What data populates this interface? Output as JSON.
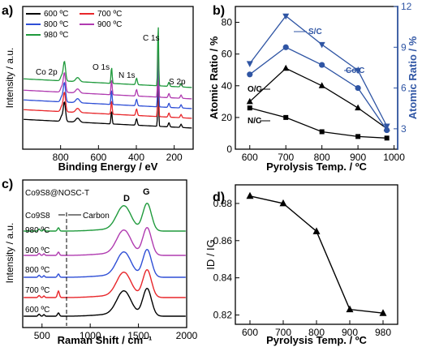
{
  "panels": {
    "a": {
      "tag": "a)",
      "xlabel": "Binding Energy / eV",
      "ylabel": "Intensity / a.u.",
      "xticks": [
        "800",
        "600",
        "400",
        "200"
      ],
      "legend": [
        {
          "label": "600 ºC",
          "color": "#000000"
        },
        {
          "label": "700 ºC",
          "color": "#e8262a"
        },
        {
          "label": "800 ºC",
          "color": "#2f4fd6"
        },
        {
          "label": "900 ºC",
          "color": "#b03bb0"
        },
        {
          "label": "980 ºC",
          "color": "#1f9a3c"
        }
      ],
      "peak_labels": [
        "Co 2p",
        "O 1s",
        "N 1s",
        "C 1s",
        "S 2p"
      ]
    },
    "b": {
      "tag": "b)",
      "xlabel": "Pyrolysis Temp. / ºC",
      "ylabel_left": "Atomic Ratio / %",
      "ylabel_right": "Atomic Ratio / %",
      "xticks": [
        "600",
        "700",
        "800",
        "900",
        "1000"
      ],
      "yticks_left": [
        "0",
        "20",
        "40",
        "60",
        "80"
      ],
      "yticks_right": [
        "3",
        "6",
        "9",
        "12"
      ],
      "left_color": "#000000",
      "right_color": "#2f55a4"
    },
    "c": {
      "tag": "c)",
      "xlabel": "Raman Shift / cm⁻¹",
      "ylabel": "Intensity / a.u.",
      "xticks": [
        "500",
        "1000",
        "1500",
        "2000"
      ],
      "header": "Co9S8@NOSC-T",
      "sample_label": "Co9S8",
      "carbon_label": "Carbon",
      "band_D": "D",
      "band_G": "G",
      "traces": [
        {
          "label": "980 ºC",
          "color": "#1f9a3c"
        },
        {
          "label": "900 ºC",
          "color": "#b03bb0"
        },
        {
          "label": "800 ºC",
          "color": "#2f4fd6"
        },
        {
          "label": "700 ºC",
          "color": "#e8262a"
        },
        {
          "label": "600 ºC",
          "color": "#000000"
        }
      ]
    },
    "d": {
      "tag": "d)",
      "xlabel": "Pyrolysis Temp. / ºC",
      "ylabel": "ID / IG",
      "xticks": [
        "600",
        "700",
        "800",
        "900",
        "980"
      ],
      "yticks": [
        "0.82",
        "0.84",
        "0.86",
        "0.88"
      ]
    }
  },
  "chart_data": [
    {
      "type": "line",
      "panel": "a",
      "title": "",
      "xlabel": "Binding Energy / eV",
      "ylabel": "Intensity / a.u.",
      "xlim": [
        1000,
        100
      ],
      "x_reversed": true,
      "series": [
        {
          "name": "600 ºC",
          "peaks": [
            780,
            531,
            399,
            285,
            164
          ]
        },
        {
          "name": "700 ºC",
          "peaks": [
            780,
            531,
            399,
            285,
            164
          ]
        },
        {
          "name": "800 ºC",
          "peaks": [
            780,
            531,
            399,
            285,
            164
          ]
        },
        {
          "name": "900 ºC",
          "peaks": [
            780,
            531,
            399,
            285,
            164
          ]
        },
        {
          "name": "980 ºC",
          "peaks": [
            780,
            531,
            399,
            285,
            164
          ]
        }
      ]
    },
    {
      "type": "line",
      "panel": "b",
      "title": "",
      "xlabel": "Pyrolysis Temp. / ºC",
      "ylabel": "Atomic Ratio / %",
      "y2label": "Atomic Ratio / %",
      "xlim": [
        560,
        1010
      ],
      "ylim": [
        0,
        90
      ],
      "y2lim": [
        1.5,
        12
      ],
      "x": [
        600,
        700,
        800,
        900,
        980
      ],
      "series": [
        {
          "name": "O/C",
          "axis": "left",
          "marker": "triangle",
          "values": [
            30,
            51,
            40,
            26,
            13
          ]
        },
        {
          "name": "N/C",
          "axis": "left",
          "marker": "square",
          "values": [
            26,
            20,
            11,
            8,
            7
          ]
        },
        {
          "name": "S/C",
          "axis": "right",
          "marker": "triangle-down",
          "values": [
            7.8,
            11.3,
            9.2,
            7.3,
            3.2
          ]
        },
        {
          "name": "Co/C",
          "axis": "right",
          "marker": "circle",
          "values": [
            7.0,
            9.0,
            7.7,
            6.0,
            2.9
          ]
        }
      ]
    },
    {
      "type": "line",
      "panel": "c",
      "title": "",
      "xlabel": "Raman Shift / cm⁻¹",
      "ylabel": "Intensity / a.u.",
      "xlim": [
        300,
        2000
      ],
      "series": [
        {
          "name": "980 ºC",
          "peaks": [
            670,
            1350,
            1590
          ]
        },
        {
          "name": "900 ºC",
          "peaks": [
            670,
            1350,
            1590
          ]
        },
        {
          "name": "800 ºC",
          "peaks": [
            670,
            1350,
            1590
          ]
        },
        {
          "name": "700 ºC",
          "peaks": [
            670,
            1350,
            1590
          ]
        },
        {
          "name": "600 ºC",
          "peaks": [
            670,
            1350,
            1590
          ]
        }
      ]
    },
    {
      "type": "line",
      "panel": "d",
      "title": "",
      "xlabel": "Pyrolysis Temp. / ºC",
      "ylabel": "ID / IG",
      "ylim": [
        0.815,
        0.89
      ],
      "categories": [
        "600",
        "700",
        "800",
        "900",
        "980"
      ],
      "values": [
        0.884,
        0.88,
        0.865,
        0.823,
        0.821
      ]
    }
  ]
}
